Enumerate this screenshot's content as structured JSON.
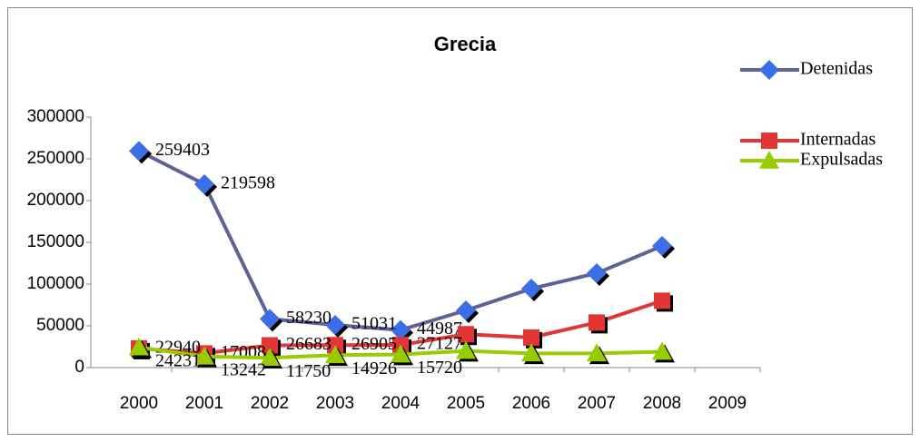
{
  "chart_data": {
    "type": "line",
    "title": "Grecia",
    "categories": [
      "2000",
      "2001",
      "2002",
      "2003",
      "2004",
      "2005",
      "2006",
      "2007",
      "2008",
      "2009"
    ],
    "ylim": [
      0,
      300000
    ],
    "yticks": [
      0,
      50000,
      100000,
      150000,
      200000,
      250000,
      300000
    ],
    "grid": false,
    "legend": "right",
    "series": [
      {
        "name": "Detenidas",
        "color": "#5f6199",
        "marker_color": "#3a6fe8",
        "marker": "diamond",
        "values": [
          259403,
          219598,
          58230,
          51031,
          44987,
          68500,
          94500,
          113000,
          145600,
          null
        ],
        "value_labels": [
          "259403",
          "219598",
          "58230",
          "51031",
          "44987",
          null,
          null,
          null,
          null,
          null
        ]
      },
      {
        "name": "Internadas",
        "color": "#e23535",
        "marker_color": "#e23535",
        "marker": "square",
        "values": [
          22940,
          17008,
          26683,
          26905,
          27127,
          40000,
          36000,
          54000,
          80000,
          null
        ],
        "value_labels": [
          "22940",
          "17008",
          "26683",
          "26905",
          "27127",
          null,
          null,
          null,
          null,
          null
        ]
      },
      {
        "name": "Expulsadas",
        "color": "#99cc00",
        "marker_color": "#99cc00",
        "marker": "triangle",
        "values": [
          24231,
          13242,
          11750,
          14926,
          15720,
          20000,
          17000,
          17000,
          19000,
          null
        ],
        "value_labels": [
          "24231",
          "13242",
          "11750",
          "14926",
          "15720",
          null,
          null,
          null,
          null,
          null
        ]
      }
    ]
  }
}
